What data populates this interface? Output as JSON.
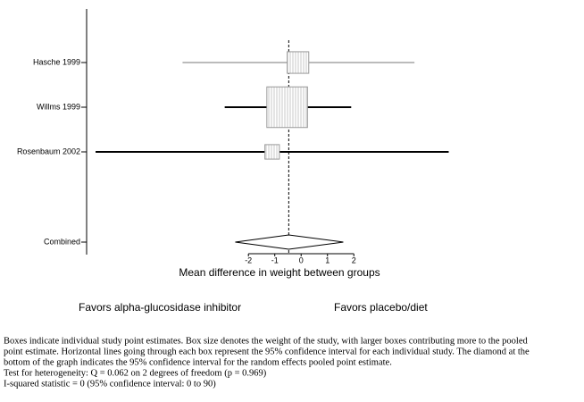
{
  "chart_data": {
    "type": "forest",
    "categories": [
      "Hasche 1999",
      "Willms 1999",
      "Rosenbaum 2002"
    ],
    "values": [
      -0.12,
      -0.53,
      -1.1
    ],
    "ci_low": [
      -4.5,
      -2.9,
      -7.8
    ],
    "ci_high": [
      4.3,
      1.9,
      5.6
    ],
    "weights": [
      20,
      71,
      9
    ],
    "line_colors": [
      "#777777",
      "#000000",
      "#000000"
    ],
    "box_color": "#d8d8d8",
    "combined": {
      "label": "Combined",
      "value": -0.47,
      "ci_low": -2.5,
      "ci_high": 1.6
    },
    "xlim": [
      -8.14,
      10.7
    ],
    "xticks": [
      -2,
      -1,
      0,
      1,
      2
    ],
    "xlabel": "Mean difference in weight between groups",
    "favors_left": "Favors alpha-glucosidase inhibitor",
    "favors_right": "Favors placebo/diet"
  },
  "footnotes": [
    "Boxes indicate individual study point estimates. Box size denotes the weight of the study, with larger boxes contributing more to the pooled",
    "point estimate.  Horizontal lines going through each box represent the 95% confidence interval for each individual study.  The diamond at the",
    "bottom of the graph indicates the 95% confidence interval for the random effects pooled point estimate.",
    "Test for heterogeneity: Q = 0.062 on 2 degrees of freedom (p = 0.969)",
    "I-squared statistic = 0 (95% confidence interval: 0 to 90)"
  ]
}
